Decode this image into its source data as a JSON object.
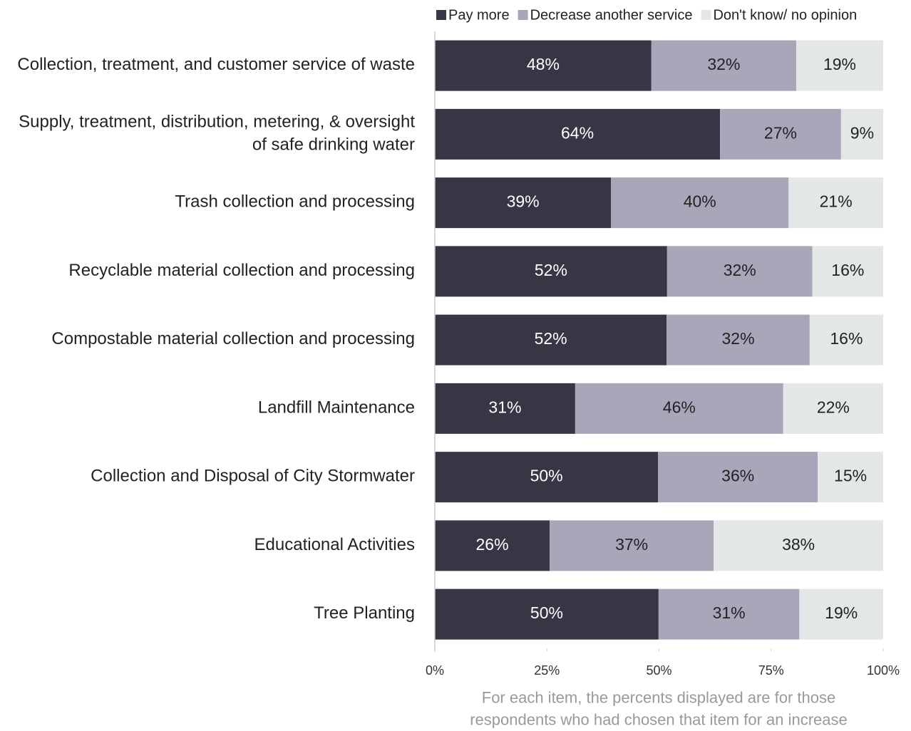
{
  "chart_data": {
    "type": "stacked-barh",
    "categories": [
      "Collection, treatment, and customer service of waste",
      "Supply, treatment, distribution, metering, & oversight of safe drinking water",
      "Trash collection and processing",
      "Recyclable material collection and processing",
      "Compostable material collection and processing",
      "Landfill Maintenance",
      "Collection and Disposal of City Stormwater",
      "Educational Activities",
      "Tree Planting"
    ],
    "series": [
      {
        "name": "Pay more",
        "color": "#383545",
        "values": [
          48.3,
          63.6,
          39.3,
          51.8,
          51.7,
          31.3,
          49.8,
          25.6,
          49.9
        ],
        "value_labels": [
          "48%",
          "64%",
          "39%",
          "52%",
          "52%",
          "31%",
          "50%",
          "26%",
          "50%"
        ]
      },
      {
        "name": "Decrease another service",
        "color": "#aaa6b9",
        "values": [
          32.3,
          27.0,
          39.6,
          32.4,
          31.9,
          46.4,
          35.6,
          36.6,
          31.4
        ],
        "value_labels": [
          "32%",
          "27%",
          "40%",
          "32%",
          "32%",
          "46%",
          "36%",
          "37%",
          "31%"
        ]
      },
      {
        "name": "Don't know/ no opinion",
        "color": "#e4e7e7",
        "values": [
          19.4,
          9.4,
          21.1,
          15.8,
          16.4,
          22.3,
          14.6,
          37.8,
          18.7
        ],
        "value_labels": [
          "19%",
          "9%",
          "21%",
          "16%",
          "16%",
          "22%",
          "15%",
          "38%",
          "19%"
        ]
      }
    ],
    "xlim": [
      0,
      100
    ],
    "xticks": [
      {
        "value": 0,
        "label": "0%"
      },
      {
        "value": 25,
        "label": "25%"
      },
      {
        "value": 50,
        "label": "50%"
      },
      {
        "value": 75,
        "label": "75%"
      },
      {
        "value": 100,
        "label": "100%"
      }
    ],
    "note": "For each item, the percents displayed are for those respondents who had chosen that item for an increase",
    "legend": "top-right"
  }
}
